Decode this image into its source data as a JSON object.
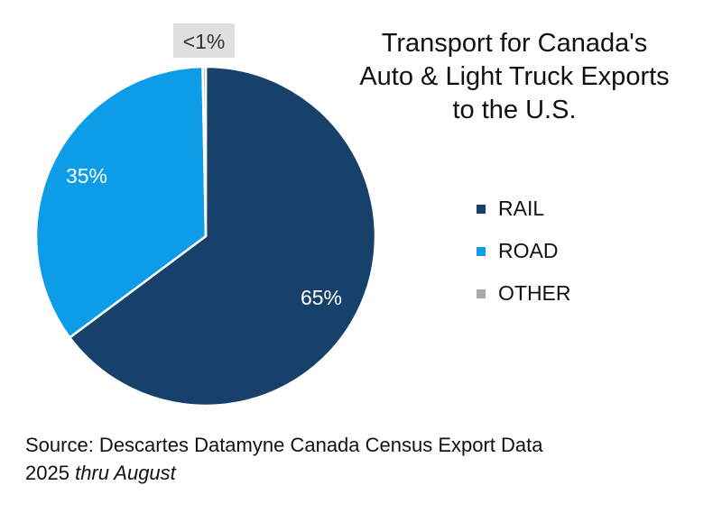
{
  "chart_data": {
    "type": "pie",
    "title": "Transport for Canada's Auto & Light Truck Exports to the U.S.",
    "title_lines": [
      "Transport for Canada's",
      "Auto & Light Truck Exports",
      "to the U.S."
    ],
    "slices": [
      {
        "name": "RAIL",
        "value": 65,
        "label": "65%",
        "color": "#17416b"
      },
      {
        "name": "ROAD",
        "value": 35,
        "label": "35%",
        "color": "#0d9ce8"
      },
      {
        "name": "OTHER",
        "value": 0.3,
        "label": "<1%",
        "color": "#aaaaaa"
      }
    ],
    "legend_position": "right",
    "other_label_bg": "#e0e0e0"
  },
  "source": {
    "main": "Source: Descartes Datamyne Canada Census Export Data",
    "year": "2025",
    "period": "thru August"
  }
}
